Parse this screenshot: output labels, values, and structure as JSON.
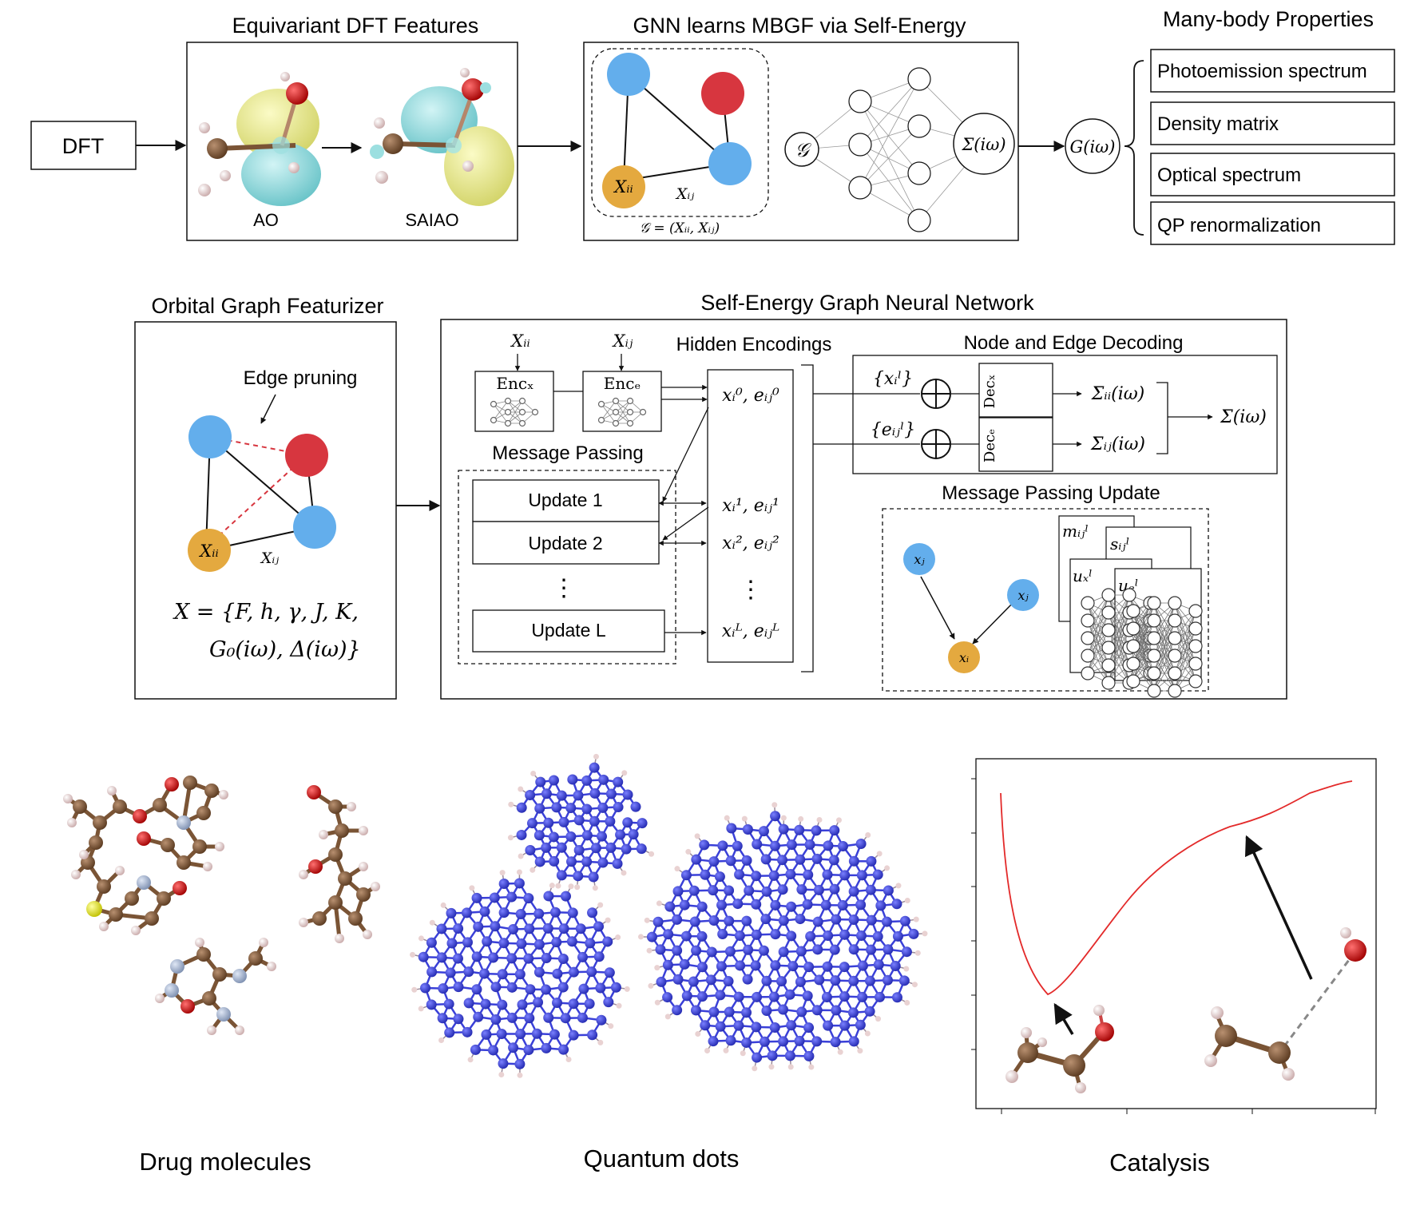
{
  "colors": {
    "blue_node": "#63aeec",
    "red_node": "#d7363f",
    "orange_node": "#e4a93f",
    "orbital_yellow": "#ecec93",
    "orbital_cyan": "#92dde0",
    "carbon": "#7a5435",
    "hydrogen": "#e9d2d2",
    "oxygen": "#d61f1f",
    "nitrogen": "#9fb1cf",
    "sulfur": "#ecec2a",
    "quantum_dot": "#3a40d8",
    "curve": "#e32a2a"
  },
  "top": {
    "dft_label": "DFT",
    "features_title": "Equivariant DFT Features",
    "ao_label": "AO",
    "saiao_label": "SAIAO",
    "gnn_title": "GNN learns MBGF via Self-Energy",
    "node_xii": "Xᵢᵢ",
    "edge_xij": "Xᵢⱼ",
    "graph_def": "𝒢 = (Xᵢᵢ, Xᵢⱼ)",
    "graph_symbol": "𝒢",
    "sigma_symbol": "Σ(iω)",
    "g_symbol": "G(iω)",
    "properties_title": "Many-body Properties",
    "properties": [
      "Photoemission spectrum",
      "Density matrix",
      "Optical spectrum",
      "QP renormalization"
    ]
  },
  "middle": {
    "featurizer_title": "Orbital Graph Featurizer",
    "edge_pruning": "Edge pruning",
    "node_xii": "Xᵢᵢ",
    "edge_xij": "Xᵢⱼ",
    "feature_set_line1": "X = {F, h, γ, J, K,",
    "feature_set_line2": "G₀(iω), Δ(iω)}",
    "segnn_title": "Self-Energy Graph Neural Network",
    "input_xii": "Xᵢᵢ",
    "input_xij": "Xᵢⱼ",
    "enc_x": "Encₓ",
    "enc_e": "Encₑ",
    "hidden_title": "Hidden Encodings",
    "message_passing_title": "Message Passing",
    "updates": [
      "Update 1",
      "Update 2",
      "Update L"
    ],
    "vdots": "⋮",
    "hidden_rows": [
      "xᵢ⁰, eᵢⱼ⁰",
      "xᵢ¹, eᵢⱼ¹",
      "xᵢ², eᵢⱼ²",
      "xᵢᴸ, eᵢⱼᴸ"
    ],
    "decoding_title": "Node and Edge Decoding",
    "node_set": "{xᵢˡ}",
    "edge_set": "{eᵢⱼˡ}",
    "dec_x": "Decₓ",
    "dec_e": "Decₑ",
    "sigma_ii": "Σᵢᵢ(iω)",
    "sigma_ij": "Σᵢⱼ(iω)",
    "sigma_total": "Σ(iω)",
    "mp_update_title": "Message Passing Update",
    "xj": "xⱼ",
    "xi": "xᵢ",
    "m_label": "mᵢⱼˡ",
    "s_label": "sᵢⱼˡ",
    "ux_label": "uₓˡ",
    "ue_label": "uₑˡ"
  },
  "bottom": {
    "drug_label": "Drug molecules",
    "qd_label": "Quantum dots",
    "catalysis_label": "Catalysis"
  }
}
